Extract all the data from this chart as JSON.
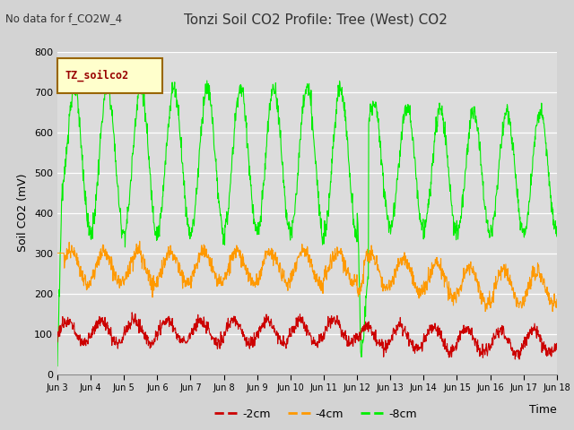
{
  "title": "Tonzi Soil CO2 Profile: Tree (West) CO2",
  "subtitle": "No data for f_CO2W_4",
  "ylabel": "Soil CO2 (mV)",
  "xlabel": "Time",
  "ylim": [
    0,
    800
  ],
  "plot_bg_color": "#dcdcdc",
  "fig_bg_color": "#d3d3d3",
  "legend_label": "TZ_soilco2",
  "series_labels": [
    "-2cm",
    "-4cm",
    "-8cm"
  ],
  "series_colors": [
    "#cc0000",
    "#ff9900",
    "#00ee00"
  ],
  "x_tick_labels": [
    "Jun 3",
    "Jun 4",
    "Jun 5",
    "Jun 6",
    "Jun 7",
    "Jun 8",
    "Jun 9",
    "Jun 10",
    "Jun 11",
    "Jun 12",
    "Jun 13",
    "Jun 14",
    "Jun 15",
    "Jun 16",
    "Jun 17",
    "Jun 18"
  ],
  "yticks": [
    0,
    100,
    200,
    300,
    400,
    500,
    600,
    700,
    800
  ],
  "n_days": 15
}
